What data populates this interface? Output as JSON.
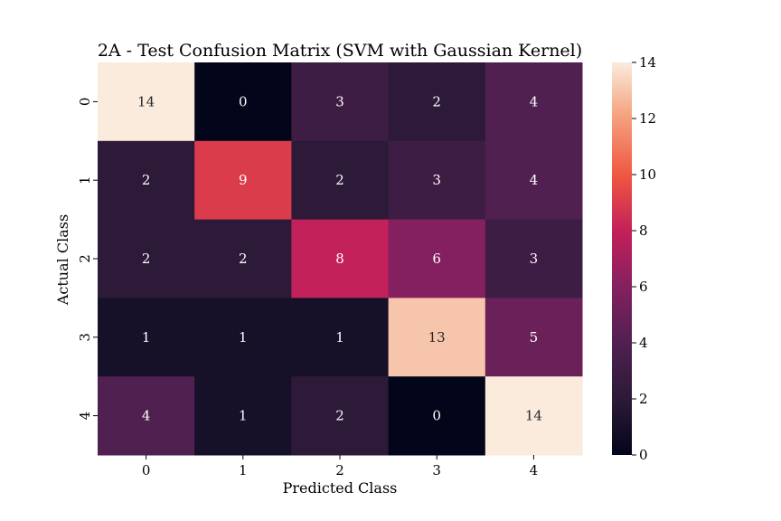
{
  "chart_data": {
    "type": "heatmap",
    "title": "2A - Test Confusion Matrix (SVM with Gaussian Kernel)",
    "xlabel": "Predicted Class",
    "ylabel": "Actual Class",
    "x_categories": [
      "0",
      "1",
      "2",
      "3",
      "4"
    ],
    "y_categories": [
      "0",
      "1",
      "2",
      "3",
      "4"
    ],
    "values": [
      [
        14,
        0,
        3,
        2,
        4
      ],
      [
        2,
        9,
        2,
        3,
        4
      ],
      [
        2,
        2,
        8,
        6,
        3
      ],
      [
        1,
        1,
        1,
        13,
        5
      ],
      [
        4,
        1,
        2,
        0,
        14
      ]
    ],
    "colorbar": {
      "min": 0,
      "max": 14,
      "ticks": [
        0,
        2,
        4,
        6,
        8,
        10,
        12,
        14
      ],
      "colormap": "rocket"
    }
  }
}
